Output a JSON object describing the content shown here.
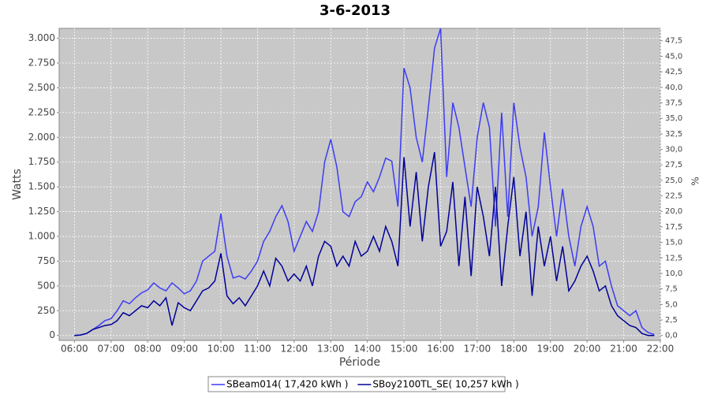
{
  "chart_data": {
    "type": "line",
    "title": "3-6-2013",
    "x_label": "Période",
    "y_label": "Watts",
    "y2_label": "%",
    "x": [
      "06:00",
      "06:10",
      "06:20",
      "06:30",
      "06:40",
      "06:50",
      "07:00",
      "07:10",
      "07:20",
      "07:30",
      "07:40",
      "07:50",
      "08:00",
      "08:10",
      "08:20",
      "08:30",
      "08:40",
      "08:50",
      "09:00",
      "09:10",
      "09:20",
      "09:30",
      "09:40",
      "09:50",
      "10:00",
      "10:10",
      "10:20",
      "10:30",
      "10:40",
      "10:50",
      "11:00",
      "11:10",
      "11:20",
      "11:30",
      "11:40",
      "11:50",
      "12:00",
      "12:10",
      "12:20",
      "12:30",
      "12:40",
      "12:50",
      "13:00",
      "13:10",
      "13:20",
      "13:30",
      "13:40",
      "13:50",
      "14:00",
      "14:10",
      "14:20",
      "14:30",
      "14:40",
      "14:50",
      "15:00",
      "15:10",
      "15:20",
      "15:30",
      "15:40",
      "15:50",
      "16:00",
      "16:10",
      "16:20",
      "16:30",
      "16:40",
      "16:50",
      "17:00",
      "17:10",
      "17:20",
      "17:30",
      "17:40",
      "17:50",
      "18:00",
      "18:10",
      "18:20",
      "18:30",
      "18:40",
      "18:50",
      "19:00",
      "19:10",
      "19:20",
      "19:30",
      "19:40",
      "19:50",
      "20:00",
      "20:10",
      "20:20",
      "20:30",
      "20:40",
      "20:50",
      "21:00",
      "21:10",
      "21:20",
      "21:30",
      "21:40",
      "21:50"
    ],
    "series": [
      {
        "name": "SBeam014( 17,420 kWh )",
        "color": "#3c3cf5",
        "values": [
          0,
          5,
          20,
          60,
          100,
          150,
          170,
          250,
          350,
          320,
          380,
          430,
          460,
          530,
          480,
          450,
          530,
          480,
          420,
          450,
          550,
          750,
          800,
          850,
          1230,
          800,
          580,
          600,
          570,
          650,
          750,
          950,
          1050,
          1200,
          1310,
          1150,
          850,
          1000,
          1150,
          1050,
          1250,
          1750,
          1980,
          1700,
          1250,
          1200,
          1350,
          1400,
          1550,
          1450,
          1600,
          1790,
          1760,
          1300,
          2700,
          2500,
          2000,
          1750,
          2300,
          2900,
          3100,
          1600,
          2350,
          2100,
          1700,
          1300,
          2000,
          2350,
          2100,
          1100,
          2250,
          1200,
          2350,
          1900,
          1600,
          1000,
          1300,
          2050,
          1500,
          1000,
          1480,
          1000,
          700,
          1100,
          1300,
          1100,
          700,
          750,
          500,
          300,
          250,
          200,
          250,
          80,
          30,
          10
        ]
      },
      {
        "name": "SBoy2100TL_SE( 10,257 kWh )",
        "color": "#000099",
        "values": [
          0,
          5,
          20,
          60,
          80,
          100,
          110,
          150,
          230,
          200,
          250,
          300,
          280,
          350,
          300,
          380,
          100,
          330,
          280,
          250,
          350,
          450,
          480,
          550,
          830,
          400,
          320,
          380,
          300,
          400,
          500,
          650,
          500,
          780,
          700,
          550,
          620,
          550,
          700,
          500,
          800,
          950,
          900,
          700,
          800,
          700,
          950,
          800,
          850,
          1000,
          850,
          1100,
          950,
          700,
          1800,
          1100,
          1650,
          950,
          1500,
          1850,
          900,
          1050,
          1550,
          700,
          1400,
          600,
          1500,
          1200,
          800,
          1500,
          500,
          1100,
          1600,
          800,
          1250,
          400,
          1100,
          700,
          1000,
          550,
          900,
          450,
          550,
          700,
          800,
          650,
          450,
          500,
          300,
          200,
          150,
          100,
          80,
          20,
          0,
          0
        ]
      }
    ],
    "xlim": [
      "05:35",
      "22:00"
    ],
    "xticks": [
      "06:00",
      "07:00",
      "08:00",
      "09:00",
      "10:00",
      "11:00",
      "12:00",
      "13:00",
      "14:00",
      "15:00",
      "16:00",
      "17:00",
      "18:00",
      "19:00",
      "20:00",
      "21:00",
      "22:00"
    ],
    "ylim": [
      -50,
      3100
    ],
    "yticks": [
      0,
      250,
      500,
      750,
      {
        "value": 1000,
        "label": "1.000"
      },
      {
        "value": 1250,
        "label": "1.250"
      },
      {
        "value": 1500,
        "label": "1.500"
      },
      {
        "value": 1750,
        "label": "1.750"
      },
      {
        "value": 2000,
        "label": "2.000"
      },
      {
        "value": 2250,
        "label": "2.250"
      },
      {
        "value": 2500,
        "label": "2.500"
      },
      {
        "value": 2750,
        "label": "2.750"
      },
      {
        "value": 3000,
        "label": "3.000"
      }
    ],
    "y2lim": [
      -0.8,
      49.5
    ],
    "y2ticks": [
      {
        "value": 0,
        "label": "0,0"
      },
      {
        "value": 2.5,
        "label": "2,5"
      },
      {
        "value": 5,
        "label": "5,0"
      },
      {
        "value": 7.5,
        "label": "7,5"
      },
      {
        "value": 10,
        "label": "10,0"
      },
      {
        "value": 12.5,
        "label": "12,5"
      },
      {
        "value": 15,
        "label": "15,0"
      },
      {
        "value": 17.5,
        "label": "17,5"
      },
      {
        "value": 20,
        "label": "20,0"
      },
      {
        "value": 22.5,
        "label": "22,5"
      },
      {
        "value": 25,
        "label": "25,0"
      },
      {
        "value": 27.5,
        "label": "27,5"
      },
      {
        "value": 30,
        "label": "30,0"
      },
      {
        "value": 32.5,
        "label": "32,5"
      },
      {
        "value": 35,
        "label": "35,0"
      },
      {
        "value": 37.5,
        "label": "37,5"
      },
      {
        "value": 40,
        "label": "40,0"
      },
      {
        "value": 42.5,
        "label": "42,5"
      },
      {
        "value": 45,
        "label": "45,0"
      },
      {
        "value": 47.5,
        "label": "47,5"
      }
    ],
    "grid": true,
    "legend": "bottom"
  }
}
